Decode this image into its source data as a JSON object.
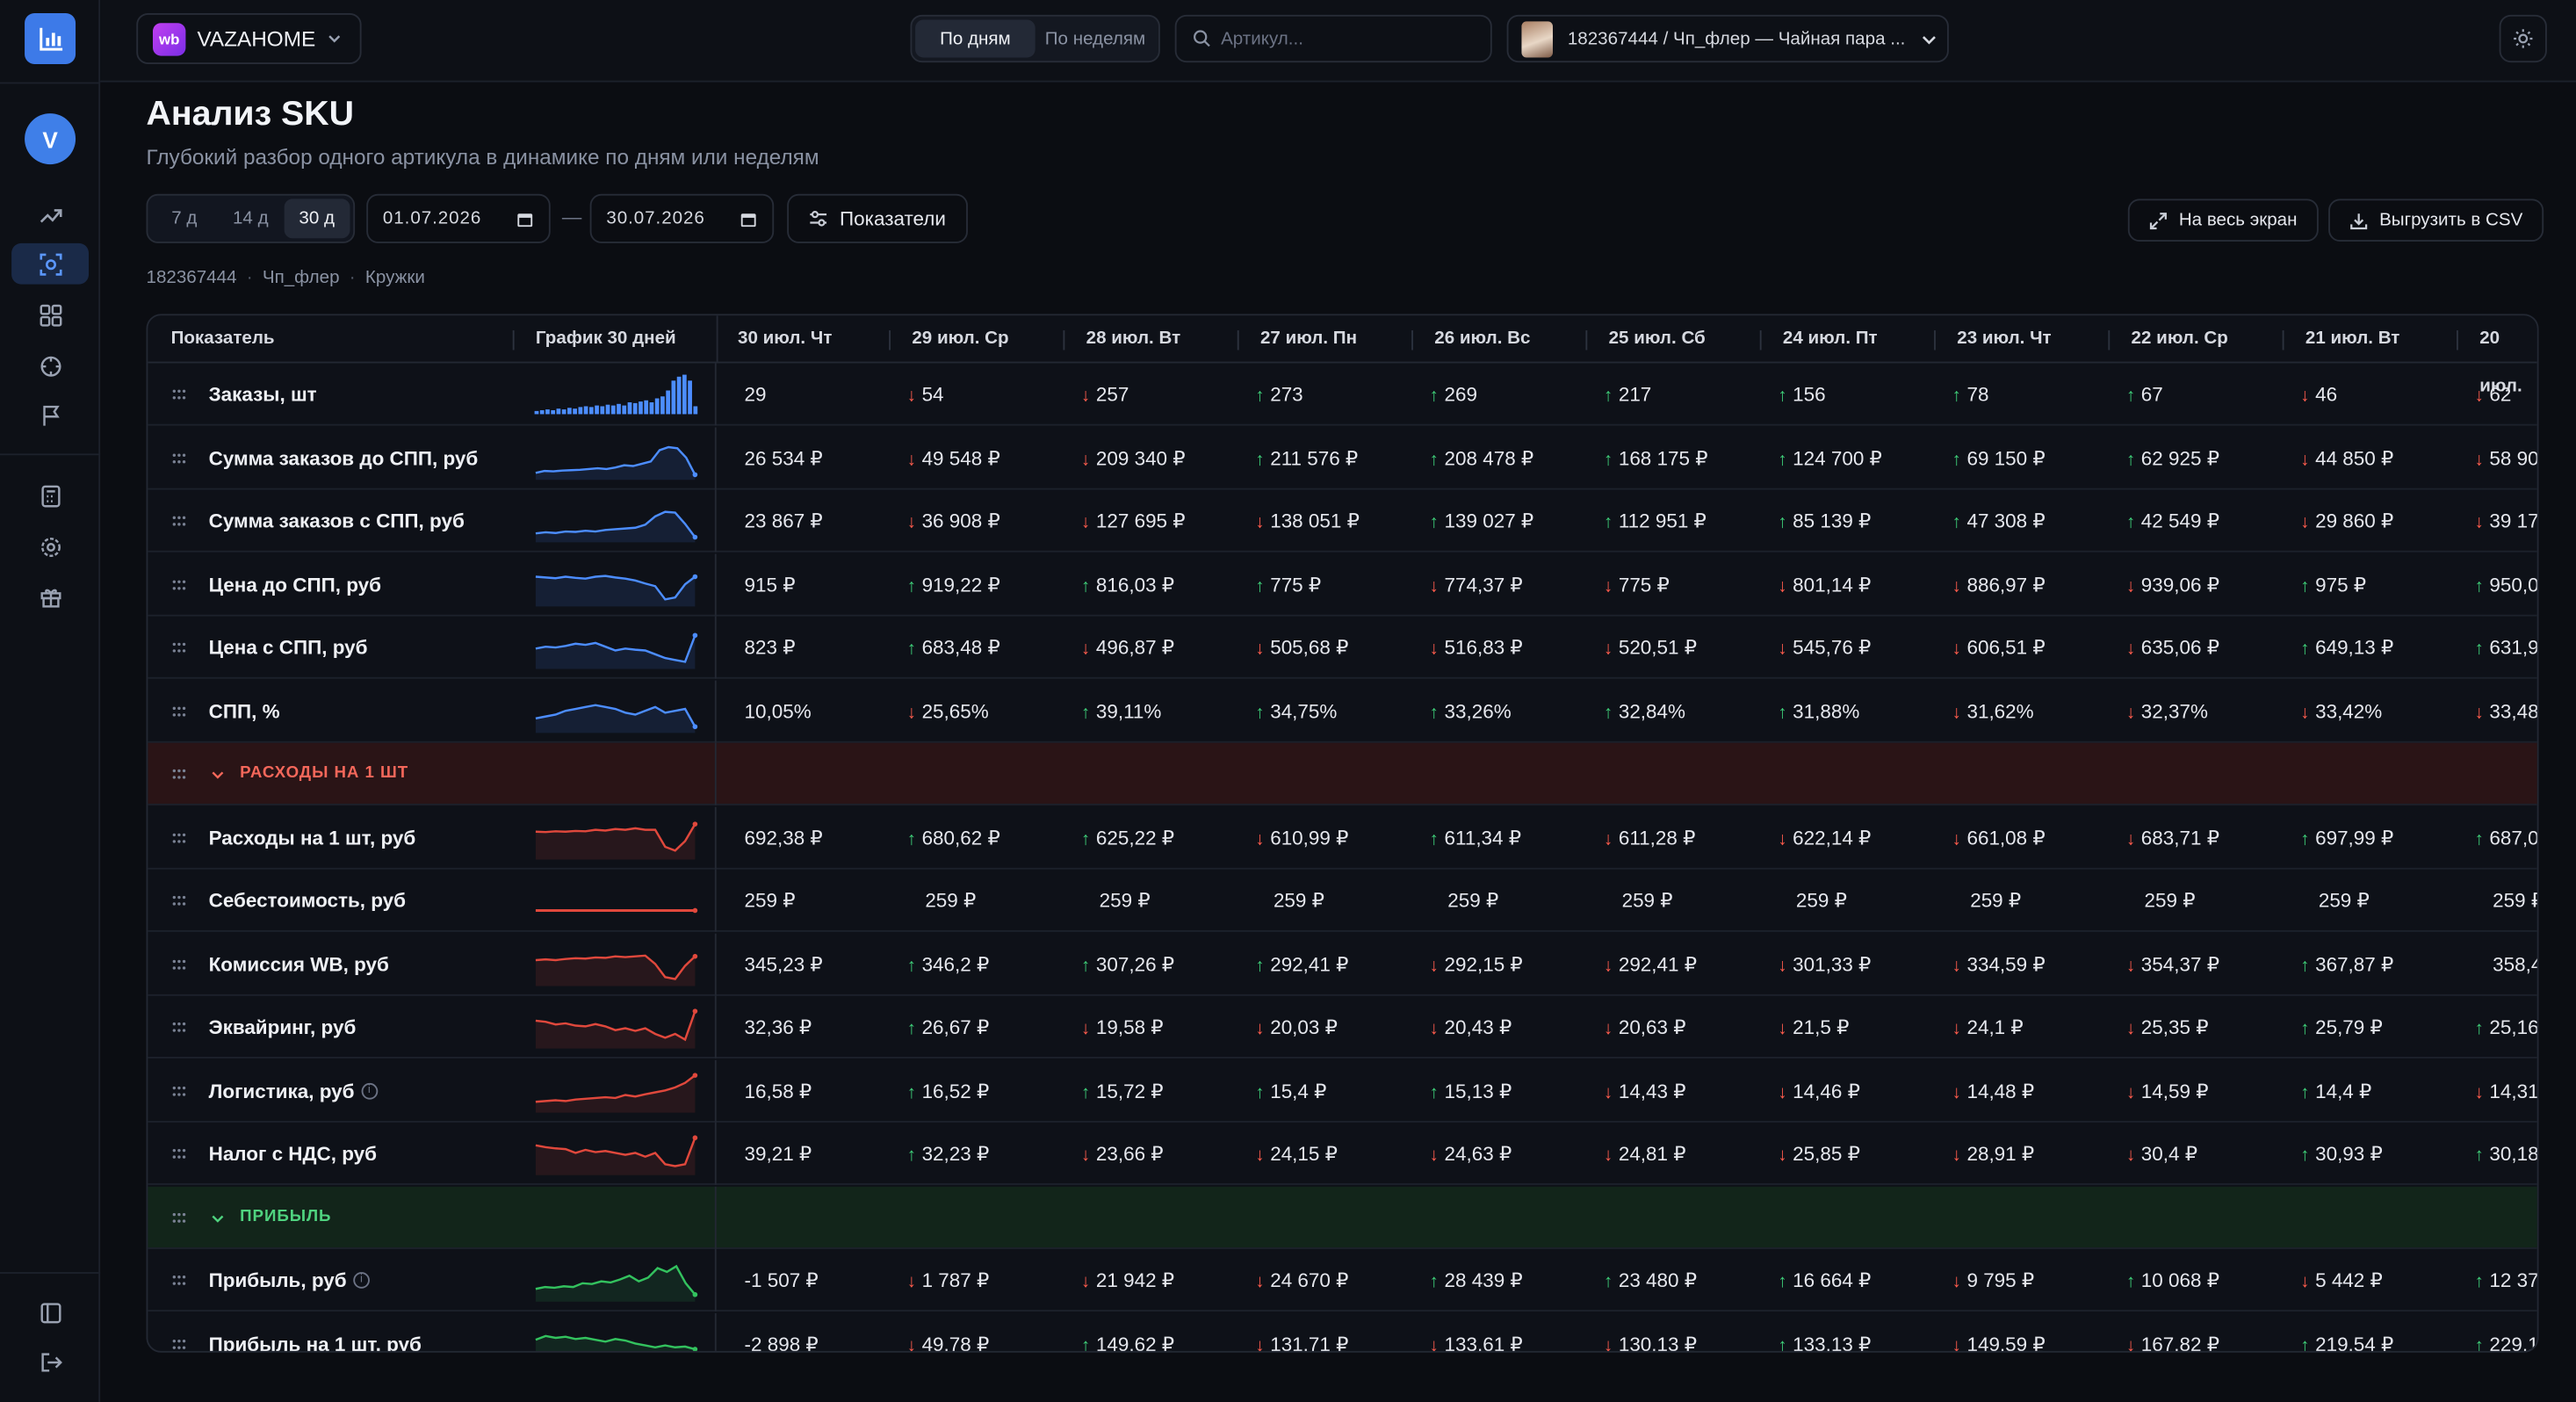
{
  "app": {
    "shop_name": "VAZAHOME",
    "shop_badge": "wb",
    "avatar_letter": "V",
    "accent": "#3d7ae8"
  },
  "topbar": {
    "view_modes": [
      "По дням",
      "По неделям"
    ],
    "active_view": 0,
    "search_placeholder": "Артикул...",
    "product_label": "182367444 / Чп_флер — Чайная пара ..."
  },
  "header": {
    "title": "Анализ SKU",
    "subtitle": "Глубокий разбор одного артикула в динамике по дням или неделям"
  },
  "controls": {
    "ranges": [
      "7 д",
      "14 д",
      "30 д"
    ],
    "active_range": 2,
    "date_from": "01.07.2026",
    "date_sep": "—",
    "date_to": "30.07.2026",
    "metrics_button": "Показатели",
    "fullscreen_button": "На весь экран",
    "export_button": "Выгрузить в CSV"
  },
  "breadcrumb": [
    "182367444",
    "Чп_флер",
    "Кружки"
  ],
  "table": {
    "col_indicator": "Показатель",
    "col_chart": "График 30 дней",
    "dates": [
      "30 июл. Чт",
      "29 июл. Ср",
      "28 июл. Вт",
      "27 июл. Пн",
      "26 июл. Вс",
      "25 июл. Сб",
      "24 июл. Пт",
      "23 июл. Чт",
      "22 июл. Ср",
      "21 июл. Вт",
      "20 июл."
    ],
    "colors": {
      "up": "#3fd17a",
      "down": "#ff5c4d",
      "blue": "#4c8dff",
      "red": "#e0483c",
      "green": "#33c25e",
      "expense_bg": "#2a1416",
      "expense_text": "#f4675a",
      "profit_bg": "#12251a",
      "profit_text": "#4fd37f"
    },
    "rows": [
      {
        "type": "metric",
        "name": "Заказы, шт",
        "chart": "bars",
        "color": "blue",
        "values": [
          [
            "29",
            ""
          ],
          [
            "54",
            "down"
          ],
          [
            "257",
            "down"
          ],
          [
            "273",
            "up"
          ],
          [
            "269",
            "up"
          ],
          [
            "217",
            "up"
          ],
          [
            "156",
            "up"
          ],
          [
            "78",
            "up"
          ],
          [
            "67",
            "up"
          ],
          [
            "46",
            "down"
          ],
          [
            "62",
            "down"
          ]
        ]
      },
      {
        "type": "metric",
        "name": "Сумма заказов до СПП, руб",
        "chart": "line1",
        "color": "blue",
        "values": [
          [
            "26 534 ₽",
            ""
          ],
          [
            "49 548 ₽",
            "down"
          ],
          [
            "209 340 ₽",
            "down"
          ],
          [
            "211 576 ₽",
            "up"
          ],
          [
            "208 478 ₽",
            "up"
          ],
          [
            "168 175 ₽",
            "up"
          ],
          [
            "124 700 ₽",
            "up"
          ],
          [
            "69 150 ₽",
            "up"
          ],
          [
            "62 925 ₽",
            "up"
          ],
          [
            "44 850 ₽",
            "down"
          ],
          [
            "58 90",
            "down"
          ]
        ]
      },
      {
        "type": "metric",
        "name": "Сумма заказов с СПП, руб",
        "chart": "line2",
        "color": "blue",
        "values": [
          [
            "23 867 ₽",
            ""
          ],
          [
            "36 908 ₽",
            "down"
          ],
          [
            "127 695 ₽",
            "down"
          ],
          [
            "138 051 ₽",
            "down"
          ],
          [
            "139 027 ₽",
            "up"
          ],
          [
            "112 951 ₽",
            "up"
          ],
          [
            "85 139 ₽",
            "up"
          ],
          [
            "47 308 ₽",
            "up"
          ],
          [
            "42 549 ₽",
            "up"
          ],
          [
            "29 860 ₽",
            "down"
          ],
          [
            "39 17",
            "down"
          ]
        ]
      },
      {
        "type": "metric",
        "name": "Цена до СПП, руб",
        "chart": "line3",
        "color": "blue",
        "values": [
          [
            "915 ₽",
            ""
          ],
          [
            "919,22 ₽",
            "up"
          ],
          [
            "816,03 ₽",
            "up"
          ],
          [
            "775 ₽",
            "up"
          ],
          [
            "774,37 ₽",
            "down"
          ],
          [
            "775 ₽",
            "down"
          ],
          [
            "801,14 ₽",
            "down"
          ],
          [
            "886,97 ₽",
            "down"
          ],
          [
            "939,06 ₽",
            "down"
          ],
          [
            "975 ₽",
            "up"
          ],
          [
            "950,0",
            "up"
          ]
        ]
      },
      {
        "type": "metric",
        "name": "Цена с СПП, руб",
        "chart": "line4",
        "color": "blue",
        "values": [
          [
            "823 ₽",
            ""
          ],
          [
            "683,48 ₽",
            "up"
          ],
          [
            "496,87 ₽",
            "down"
          ],
          [
            "505,68 ₽",
            "down"
          ],
          [
            "516,83 ₽",
            "down"
          ],
          [
            "520,51 ₽",
            "down"
          ],
          [
            "545,76 ₽",
            "down"
          ],
          [
            "606,51 ₽",
            "down"
          ],
          [
            "635,06 ₽",
            "down"
          ],
          [
            "649,13 ₽",
            "up"
          ],
          [
            "631,9",
            "up"
          ]
        ]
      },
      {
        "type": "metric",
        "name": "СПП, %",
        "chart": "line5",
        "color": "blue",
        "values": [
          [
            "10,05%",
            ""
          ],
          [
            "25,65%",
            "down"
          ],
          [
            "39,11%",
            "up"
          ],
          [
            "34,75%",
            "up"
          ],
          [
            "33,26%",
            "up"
          ],
          [
            "32,84%",
            "up"
          ],
          [
            "31,88%",
            "up"
          ],
          [
            "31,62%",
            "down"
          ],
          [
            "32,37%",
            "down"
          ],
          [
            "33,42%",
            "down"
          ],
          [
            "33,48",
            "down"
          ]
        ]
      },
      {
        "type": "group",
        "name": "РАСХОДЫ НА 1 ШТ",
        "theme": "expense"
      },
      {
        "type": "metric",
        "name": "Расходы на 1 шт, руб",
        "chart": "line6",
        "color": "red",
        "values": [
          [
            "692,38 ₽",
            ""
          ],
          [
            "680,62 ₽",
            "up"
          ],
          [
            "625,22 ₽",
            "up"
          ],
          [
            "610,99 ₽",
            "down"
          ],
          [
            "611,34 ₽",
            "up"
          ],
          [
            "611,28 ₽",
            "down"
          ],
          [
            "622,14 ₽",
            "down"
          ],
          [
            "661,08 ₽",
            "down"
          ],
          [
            "683,71 ₽",
            "down"
          ],
          [
            "697,99 ₽",
            "up"
          ],
          [
            "687,0",
            "up"
          ]
        ]
      },
      {
        "type": "metric",
        "name": "Себестоимость, руб",
        "chart": "flat",
        "color": "red",
        "values": [
          [
            "259 ₽",
            ""
          ],
          [
            "259 ₽",
            ""
          ],
          [
            "259 ₽",
            ""
          ],
          [
            "259 ₽",
            ""
          ],
          [
            "259 ₽",
            ""
          ],
          [
            "259 ₽",
            ""
          ],
          [
            "259 ₽",
            ""
          ],
          [
            "259 ₽",
            ""
          ],
          [
            "259 ₽",
            ""
          ],
          [
            "259 ₽",
            ""
          ],
          [
            "259 ₽",
            ""
          ]
        ]
      },
      {
        "type": "metric",
        "name": "Комиссия WB, руб",
        "chart": "line7",
        "color": "red",
        "values": [
          [
            "345,23 ₽",
            ""
          ],
          [
            "346,2 ₽",
            "up"
          ],
          [
            "307,26 ₽",
            "up"
          ],
          [
            "292,41 ₽",
            "up"
          ],
          [
            "292,15 ₽",
            "down"
          ],
          [
            "292,41 ₽",
            "down"
          ],
          [
            "301,33 ₽",
            "down"
          ],
          [
            "334,59 ₽",
            "down"
          ],
          [
            "354,37 ₽",
            "down"
          ],
          [
            "367,87 ₽",
            "up"
          ],
          [
            "358,4",
            ""
          ]
        ]
      },
      {
        "type": "metric",
        "name": "Эквайринг, руб",
        "chart": "line8",
        "color": "red",
        "values": [
          [
            "32,36 ₽",
            ""
          ],
          [
            "26,67 ₽",
            "up"
          ],
          [
            "19,58 ₽",
            "down"
          ],
          [
            "20,03 ₽",
            "down"
          ],
          [
            "20,43 ₽",
            "down"
          ],
          [
            "20,63 ₽",
            "down"
          ],
          [
            "21,5 ₽",
            "down"
          ],
          [
            "24,1 ₽",
            "down"
          ],
          [
            "25,35 ₽",
            "down"
          ],
          [
            "25,79 ₽",
            "up"
          ],
          [
            "25,16",
            "up"
          ]
        ]
      },
      {
        "type": "metric",
        "name": "Логистика, руб",
        "info": true,
        "chart": "line9",
        "color": "red",
        "values": [
          [
            "16,58 ₽",
            ""
          ],
          [
            "16,52 ₽",
            "up"
          ],
          [
            "15,72 ₽",
            "up"
          ],
          [
            "15,4 ₽",
            "up"
          ],
          [
            "15,13 ₽",
            "up"
          ],
          [
            "14,43 ₽",
            "down"
          ],
          [
            "14,46 ₽",
            "down"
          ],
          [
            "14,48 ₽",
            "down"
          ],
          [
            "14,59 ₽",
            "down"
          ],
          [
            "14,4 ₽",
            "up"
          ],
          [
            "14,31",
            "down"
          ]
        ]
      },
      {
        "type": "metric",
        "name": "Налог с НДС, руб",
        "chart": "line10",
        "color": "red",
        "values": [
          [
            "39,21 ₽",
            ""
          ],
          [
            "32,23 ₽",
            "up"
          ],
          [
            "23,66 ₽",
            "down"
          ],
          [
            "24,15 ₽",
            "down"
          ],
          [
            "24,63 ₽",
            "down"
          ],
          [
            "24,81 ₽",
            "down"
          ],
          [
            "25,85 ₽",
            "down"
          ],
          [
            "28,91 ₽",
            "down"
          ],
          [
            "30,4 ₽",
            "down"
          ],
          [
            "30,93 ₽",
            "up"
          ],
          [
            "30,18",
            "up"
          ]
        ]
      },
      {
        "type": "group",
        "name": "ПРИБЫЛЬ",
        "theme": "profit"
      },
      {
        "type": "metric",
        "name": "Прибыль, руб",
        "info": true,
        "chart": "line11",
        "color": "green",
        "values": [
          [
            "-1 507 ₽",
            ""
          ],
          [
            "1 787 ₽",
            "down"
          ],
          [
            "21 942 ₽",
            "down"
          ],
          [
            "24 670 ₽",
            "down"
          ],
          [
            "28 439 ₽",
            "up"
          ],
          [
            "23 480 ₽",
            "up"
          ],
          [
            "16 664 ₽",
            "up"
          ],
          [
            "9 795 ₽",
            "down"
          ],
          [
            "10 068 ₽",
            "up"
          ],
          [
            "5 442 ₽",
            "down"
          ],
          [
            "12 37",
            "up"
          ]
        ]
      },
      {
        "type": "metric",
        "name": "Прибыль на 1 шт, руб",
        "chart": "line12",
        "color": "green",
        "values": [
          [
            "-2 898 ₽",
            ""
          ],
          [
            "49,78 ₽",
            "down"
          ],
          [
            "149,62 ₽",
            "up"
          ],
          [
            "131,71 ₽",
            "down"
          ],
          [
            "133,61 ₽",
            "down"
          ],
          [
            "130,13 ₽",
            "down"
          ],
          [
            "133,13 ₽",
            "up"
          ],
          [
            "149,59 ₽",
            "down"
          ],
          [
            "167,82 ₽",
            "down"
          ],
          [
            "219,54 ₽",
            "up"
          ],
          [
            "229,1",
            "up"
          ]
        ]
      }
    ]
  }
}
